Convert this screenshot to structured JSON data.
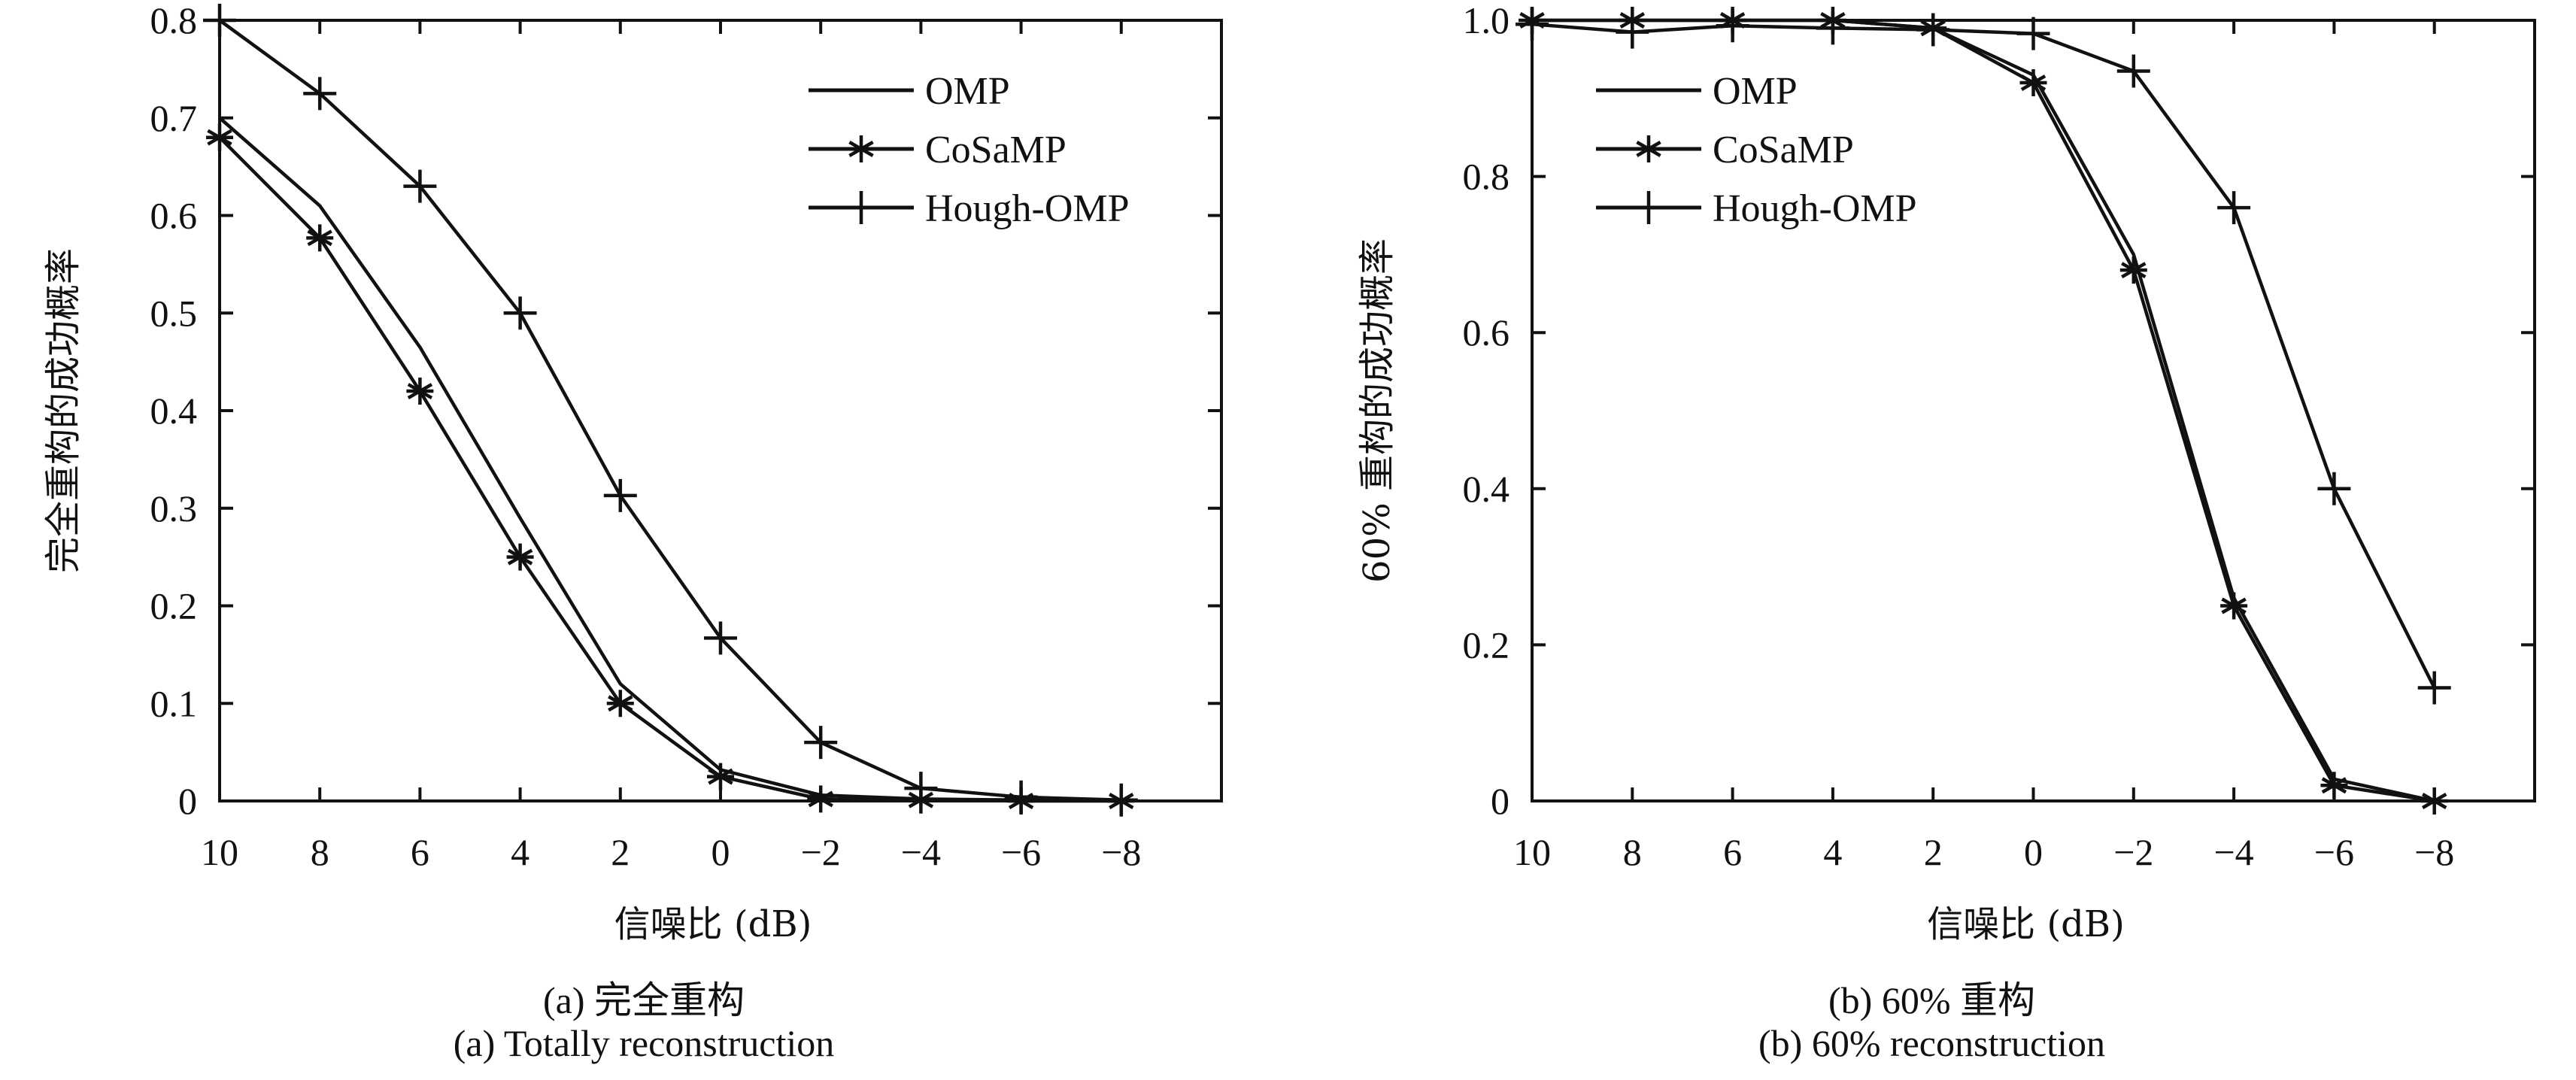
{
  "chart_data": [
    {
      "type": "line",
      "id": "a",
      "title": "",
      "xlabel": "信噪比 (dB)",
      "ylabel": "完全重构的成功概率",
      "x": [
        10,
        8,
        6,
        4,
        2,
        0,
        -2,
        -4,
        -6,
        -8
      ],
      "x_tick_labels": [
        "10",
        "8",
        "6",
        "4",
        "2",
        "0",
        "−2",
        "−4",
        "−6",
        "−8"
      ],
      "x_axis_extends_to": -10,
      "ylim": [
        0,
        0.8
      ],
      "y_ticks": [
        0,
        0.1,
        0.2,
        0.3,
        0.4,
        0.5,
        0.6,
        0.7,
        0.8
      ],
      "y_tick_labels": [
        "0",
        "0.1",
        "0.2",
        "0.3",
        "0.4",
        "0.5",
        "0.6",
        "0.7",
        "0.8"
      ],
      "grid": false,
      "legend_position": "top-right",
      "series": [
        {
          "name": "OMP",
          "marker": "none",
          "values": [
            0.7,
            0.61,
            0.465,
            0.29,
            0.12,
            0.032,
            0.006,
            0.002,
            0.001,
            0.0
          ]
        },
        {
          "name": "CoSaMP",
          "marker": "asterisk",
          "values": [
            0.68,
            0.577,
            0.42,
            0.25,
            0.1,
            0.025,
            0.002,
            0.001,
            0.0,
            0.0
          ]
        },
        {
          "name": "Hough-OMP",
          "marker": "plus",
          "values": [
            0.8,
            0.725,
            0.63,
            0.5,
            0.313,
            0.167,
            0.06,
            0.013,
            0.004,
            0.001
          ]
        }
      ],
      "caption_cn": "(a) 完全重构",
      "caption_en": "(a) Totally reconstruction"
    },
    {
      "type": "line",
      "id": "b",
      "title": "",
      "xlabel": "信噪比 (dB)",
      "ylabel": "60% 重构的成功概率",
      "x": [
        10,
        8,
        6,
        4,
        2,
        0,
        -2,
        -4,
        -6,
        -8
      ],
      "x_tick_labels": [
        "10",
        "8",
        "6",
        "4",
        "2",
        "0",
        "−2",
        "−4",
        "−6",
        "−8"
      ],
      "x_axis_extends_to": -10,
      "ylim": [
        0,
        1.0
      ],
      "y_ticks": [
        0,
        0.2,
        0.4,
        0.6,
        0.8,
        1.0
      ],
      "y_tick_labels": [
        "0",
        "0.2",
        "0.4",
        "0.6",
        "0.8",
        "1.0"
      ],
      "grid": false,
      "legend_position": "top-left",
      "series": [
        {
          "name": "OMP",
          "marker": "none",
          "values": [
            1.0,
            1.0,
            1.0,
            1.0,
            0.99,
            0.93,
            0.7,
            0.26,
            0.028,
            0.0
          ]
        },
        {
          "name": "CoSaMP",
          "marker": "asterisk",
          "values": [
            1.0,
            1.0,
            1.0,
            1.0,
            0.99,
            0.92,
            0.68,
            0.25,
            0.02,
            0.0
          ]
        },
        {
          "name": "Hough-OMP",
          "marker": "plus",
          "values": [
            0.995,
            0.985,
            0.993,
            0.99,
            0.988,
            0.983,
            0.935,
            0.76,
            0.4,
            0.145
          ]
        }
      ],
      "caption_cn": "(b) 60% 重构",
      "caption_en": "(b) 60% reconstruction"
    }
  ],
  "colors": {
    "line": "#111111",
    "background": "#ffffff"
  }
}
